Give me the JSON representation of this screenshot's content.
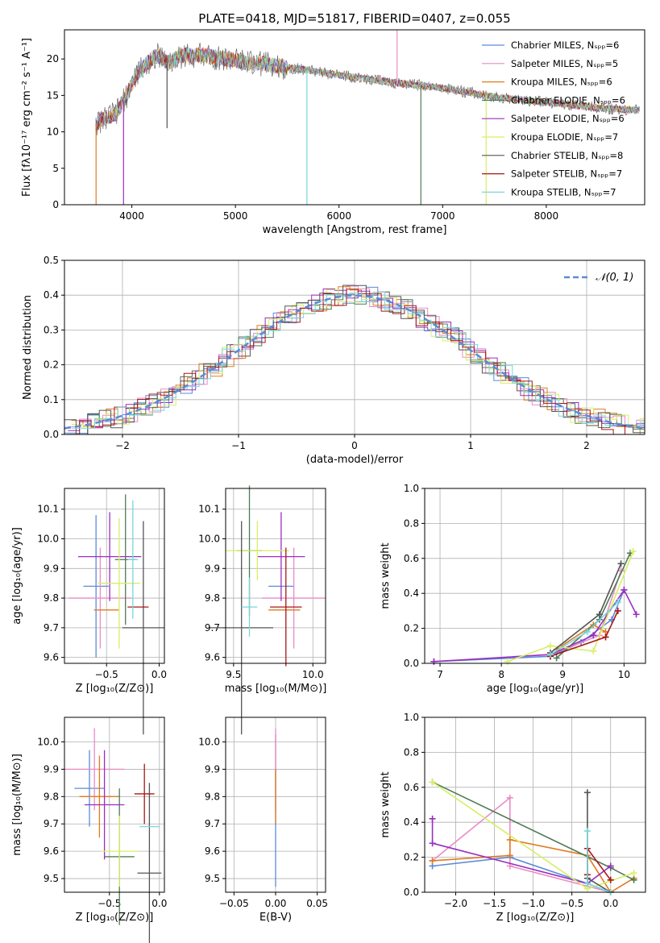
{
  "title": "PLATE=0418, MJD=51817, FIBERID=0407, z=0.055",
  "colors": {
    "chabrier_miles": "#5b8bd9",
    "salpeter_miles": "#e98cc4",
    "kroupa_miles": "#e07b1f",
    "chabrier_elodie": "#4f7a56",
    "salpeter_elodie": "#9a2fbf",
    "kroupa_elodie": "#d6ef66",
    "chabrier_stelib": "#555555",
    "salpeter_stelib": "#a81717",
    "kroupa_stelib": "#79d6dc",
    "gauss": "#5b8bd9",
    "grid": "#b0b0b0"
  },
  "chart_data": [
    {
      "id": "spectrum",
      "type": "line",
      "xlabel": "wavelength [Angstrom, rest frame]",
      "ylabel": "Flux [fλ10⁻¹⁷ erg cm⁻² s⁻¹ A⁻¹]",
      "xlim": [
        3350,
        8950
      ],
      "ylim": [
        0,
        24
      ],
      "xticks": [
        "4000",
        "5000",
        "6000",
        "7000",
        "8000"
      ],
      "yticks": [
        "0",
        "5",
        "10",
        "15",
        "20"
      ],
      "grid": false,
      "legend_position": "top-right",
      "series": [
        {
          "name": "Chabrier MILES, Nₛₚₚ=6"
        },
        {
          "name": "Salpeter MILES, Nₛₚₚ=5"
        },
        {
          "name": "Kroupa MILES, Nₛₚₚ=6"
        },
        {
          "name": "Chabrier ELODIE, Nₛₚₚ=6"
        },
        {
          "name": "Salpeter ELODIE, Nₛₚₚ=6"
        },
        {
          "name": "Kroupa ELODIE, Nₛₚₚ=7"
        },
        {
          "name": "Chabrier STELIB, Nₛₚₚ=8"
        },
        {
          "name": "Salpeter STELIB, Nₛₚₚ=7"
        },
        {
          "name": "Kroupa STELIB, Nₛₚₚ=7"
        }
      ],
      "continuum": {
        "x": [
          3650,
          3750,
          3850,
          3950,
          4050,
          4150,
          4250,
          4350,
          4500,
          4700,
          4900,
          5100,
          5300,
          5500,
          5700,
          5900,
          6100,
          6300,
          6500,
          6700,
          6900,
          7100,
          7300,
          7500,
          7700,
          7900,
          8100,
          8300,
          8500,
          8700,
          8900
        ],
        "y": [
          11,
          12,
          12.5,
          15,
          18,
          19.5,
          20.5,
          19.5,
          20.5,
          20.5,
          20,
          19.5,
          19.3,
          18.8,
          18.5,
          18,
          17.6,
          17.2,
          16.8,
          16.5,
          16.2,
          15.8,
          15.3,
          14.8,
          14.5,
          14.2,
          13.9,
          13.6,
          13.3,
          13.1,
          13.0
        ]
      },
      "spikes": [
        {
          "x": 3655,
          "y": 0
        },
        {
          "x": 3920,
          "y": 0
        },
        {
          "x": 4340,
          "y": 10.5
        },
        {
          "x": 5690,
          "y": 0
        },
        {
          "x": 6560,
          "y": 24
        },
        {
          "x": 6790,
          "y": 0
        },
        {
          "x": 7420,
          "y": 0
        }
      ]
    },
    {
      "id": "residuals",
      "type": "bar",
      "xlabel": "(data-model)/error",
      "ylabel": "Normed distribution",
      "xlim": [
        -2.5,
        2.5
      ],
      "ylim": [
        0,
        0.5
      ],
      "xticks": [
        "−2",
        "−1",
        "0",
        "1",
        "2"
      ],
      "yticks": [
        "0.0",
        "0.1",
        "0.2",
        "0.3",
        "0.4",
        "0.5"
      ],
      "grid": true,
      "legend_position": "top-right",
      "gauss_label": "𝒩(0, 1)",
      "bin_width": 0.1,
      "offset_amplitude": 0.03
    },
    {
      "id": "age-vs-Z",
      "type": "scatter",
      "xlabel": "Z [log₁₀(Z/Z⊙)]",
      "ylabel": "age  [log₁₀(age/yr)]",
      "xlim": [
        -0.9,
        0.05
      ],
      "ylim": [
        9.58,
        10.17
      ],
      "xticks": [
        "−0.5",
        "0.0"
      ],
      "yticks": [
        "9.6",
        "9.7",
        "9.8",
        "9.9",
        "10.0",
        "10.1"
      ],
      "grid": true,
      "points": [
        {
          "x": -0.6,
          "xerr": 0.12,
          "y": 9.84,
          "yerr": 0.24
        },
        {
          "x": -0.56,
          "xerr": 0.3,
          "y": 9.8,
          "yerr": 0.17
        },
        {
          "x": -0.5,
          "xerr": 0.12,
          "y": 9.76,
          "yerr": 0.0
        },
        {
          "x": -0.32,
          "xerr": 0.1,
          "y": 9.93,
          "yerr": 0.22
        },
        {
          "x": -0.47,
          "xerr": 0.3,
          "y": 9.94,
          "yerr": 0.15
        },
        {
          "x": -0.38,
          "xerr": 0.2,
          "y": 9.85,
          "yerr": 0.22
        },
        {
          "x": -0.15,
          "xerr": 0.2,
          "y": 9.7,
          "yerr": 0.36
        },
        {
          "x": -0.2,
          "xerr": 0.1,
          "y": 9.77,
          "yerr": 0.0
        },
        {
          "x": -0.25,
          "xerr": 0.05,
          "y": 9.93,
          "yerr": 0.2
        }
      ]
    },
    {
      "id": "age-vs-mass",
      "type": "scatter",
      "xlabel": "mass [log₁₀(M/M⊙)]",
      "xlim": [
        9.45,
        10.08
      ],
      "ylim": [
        9.58,
        10.17
      ],
      "xticks": [
        "9.5",
        "10.0"
      ],
      "yticks": [
        "9.6",
        "9.7",
        "9.8",
        "9.9",
        "10.0",
        "10.1"
      ],
      "grid": true,
      "points": [
        {
          "x": 9.8,
          "xerr": 0.08,
          "y": 9.84,
          "yerr": 0.0
        },
        {
          "x": 9.88,
          "xerr": 0.2,
          "y": 9.8,
          "yerr": 0.17
        },
        {
          "x": 9.82,
          "xerr": 0.1,
          "y": 9.76,
          "yerr": 0.0
        },
        {
          "x": 9.6,
          "xerr": 0.08,
          "y": 9.96,
          "yerr": 0.22
        },
        {
          "x": 9.8,
          "xerr": 0.15,
          "y": 9.94,
          "yerr": 0.15
        },
        {
          "x": 9.65,
          "xerr": 0.2,
          "y": 9.96,
          "yerr": 0.1
        },
        {
          "x": 9.55,
          "xerr": 0.2,
          "y": 9.7,
          "yerr": 0.36
        },
        {
          "x": 9.83,
          "xerr": 0.1,
          "y": 9.77,
          "yerr": 0.2
        },
        {
          "x": 9.6,
          "xerr": 0.05,
          "y": 9.77,
          "yerr": 0.1
        }
      ]
    },
    {
      "id": "weight-vs-age",
      "type": "line",
      "xlabel": "age  [log₁₀(age/yr)]",
      "ylabel": "mass weight",
      "xlim": [
        6.75,
        10.35
      ],
      "ylim": [
        0,
        1.0
      ],
      "xticks": [
        "7",
        "8",
        "9",
        "10"
      ],
      "yticks": [
        "0.0",
        "0.2",
        "0.4",
        "0.6",
        "0.8",
        "1.0"
      ],
      "grid": true,
      "series": [
        {
          "x": [
            6.9,
            8.8,
            9.3,
            9.8,
            10.0
          ],
          "y": [
            0.01,
            0.04,
            0.12,
            0.25,
            0.42
          ]
        },
        {
          "x": [
            8.8,
            9.6,
            9.95
          ],
          "y": [
            0.05,
            0.16,
            0.53
          ]
        },
        {
          "x": [
            8.9,
            9.5,
            9.7
          ],
          "y": [
            0.08,
            0.22,
            0.18
          ]
        },
        {
          "x": [
            8.9,
            9.6,
            10.1
          ],
          "y": [
            0.03,
            0.25,
            0.63
          ]
        },
        {
          "x": [
            6.9,
            8.8,
            9.5,
            10.0,
            10.2
          ],
          "y": [
            0.01,
            0.05,
            0.16,
            0.42,
            0.28
          ]
        },
        {
          "x": [
            8.1,
            8.8,
            9.5,
            10.15
          ],
          "y": [
            0.01,
            0.1,
            0.07,
            0.64
          ]
        },
        {
          "x": [
            8.8,
            9.6,
            9.95
          ],
          "y": [
            0.06,
            0.28,
            0.57
          ]
        },
        {
          "x": [
            8.8,
            9.7,
            9.9
          ],
          "y": [
            0.04,
            0.15,
            0.3
          ]
        },
        {
          "x": [
            8.8,
            9.4,
            9.9
          ],
          "y": [
            0.05,
            0.18,
            0.35
          ]
        }
      ]
    },
    {
      "id": "mass-vs-Z",
      "type": "scatter",
      "xlabel": "Z [log₁₀(Z/Z⊙)]",
      "ylabel": "mass [log₁₀(M/M⊙)]",
      "xlim": [
        -0.95,
        0.05
      ],
      "ylim": [
        9.45,
        10.09
      ],
      "xticks": [
        "−0.5",
        "0.0"
      ],
      "yticks": [
        "9.5",
        "9.6",
        "9.7",
        "9.8",
        "9.9",
        "10.0"
      ],
      "grid": true,
      "points": [
        {
          "x": -0.7,
          "xerr": 0.15,
          "y": 9.83,
          "yerr": 0.14
        },
        {
          "x": -0.65,
          "xerr": 0.3,
          "y": 9.9,
          "yerr": 0.15
        },
        {
          "x": -0.6,
          "xerr": 0.2,
          "y": 9.8,
          "yerr": 0.15
        },
        {
          "x": -0.4,
          "xerr": 0.15,
          "y": 9.58,
          "yerr": 0.25
        },
        {
          "x": -0.55,
          "xerr": 0.2,
          "y": 9.77,
          "yerr": 0.2
        },
        {
          "x": -0.4,
          "xerr": 0.18,
          "y": 9.6,
          "yerr": 0.13
        },
        {
          "x": -0.1,
          "xerr": 0.12,
          "y": 9.52,
          "yerr": 0.33
        },
        {
          "x": -0.15,
          "xerr": 0.1,
          "y": 9.81,
          "yerr": 0.11
        },
        {
          "x": -0.1,
          "xerr": 0.1,
          "y": 9.69,
          "yerr": 0.0
        }
      ]
    },
    {
      "id": "mass-vs-EBV",
      "type": "scatter",
      "xlabel": "E(B-V)",
      "xlim": [
        -0.06,
        0.06
      ],
      "ylim": [
        9.45,
        10.09
      ],
      "xticks": [
        "−0.05",
        "0.00",
        "0.05"
      ],
      "yticks": [
        "9.5",
        "9.6",
        "9.7",
        "9.8",
        "9.9",
        "10.0"
      ],
      "grid": true,
      "points": [
        {
          "x": 0,
          "xerr": 0,
          "y": 9.75,
          "yerr": 0.28
        },
        {
          "x": 0,
          "xerr": 0,
          "y": 9.9,
          "yerr": 0.15
        },
        {
          "x": 0,
          "xerr": 0,
          "y": 9.8,
          "yerr": 0.1
        }
      ]
    },
    {
      "id": "weight-vs-Z",
      "type": "line",
      "xlabel": "Z [log₁₀(Z/Z⊙)]",
      "ylabel": "mass weight",
      "xlim": [
        -2.4,
        0.45
      ],
      "ylim": [
        0,
        1.0
      ],
      "xticks": [
        "−2.0",
        "−1.5",
        "−1.0",
        "−0.5",
        "0.0"
      ],
      "yticks": [
        "0.0",
        "0.2",
        "0.4",
        "0.6",
        "0.8",
        "1.0"
      ],
      "grid": true,
      "series": [
        {
          "x": [
            -2.3,
            -1.3,
            -0.3,
            0.0
          ],
          "y": [
            0.15,
            0.2,
            0.05,
            0.0
          ]
        },
        {
          "x": [
            -2.3,
            -1.3,
            -1.3,
            0.0
          ],
          "y": [
            0.18,
            0.54,
            0.15,
            0.0
          ]
        },
        {
          "x": [
            -2.3,
            -1.3,
            -1.3,
            -0.3,
            0.0,
            0.3
          ],
          "y": [
            0.18,
            0.21,
            0.3,
            0.21,
            0.0,
            0.08
          ]
        },
        {
          "x": [
            -2.3,
            0.0,
            0.3
          ],
          "y": [
            0.63,
            0.14,
            0.07
          ]
        },
        {
          "x": [
            -2.3,
            -2.3,
            -0.3,
            0.0
          ],
          "y": [
            0.42,
            0.28,
            0.05,
            0.15
          ]
        },
        {
          "x": [
            -2.3,
            -0.3,
            0.3
          ],
          "y": [
            0.63,
            0.02,
            0.11
          ]
        },
        {
          "x": [
            -0.3,
            -0.3,
            0.0
          ],
          "y": [
            0.57,
            0.08,
            0.0
          ]
        },
        {
          "x": [
            -0.3,
            -0.3,
            0.0
          ],
          "y": [
            0.1,
            0.25,
            0.07
          ]
        },
        {
          "x": [
            -0.3,
            -0.3,
            0.0
          ],
          "y": [
            0.35,
            0.05,
            0.0
          ]
        }
      ]
    }
  ]
}
